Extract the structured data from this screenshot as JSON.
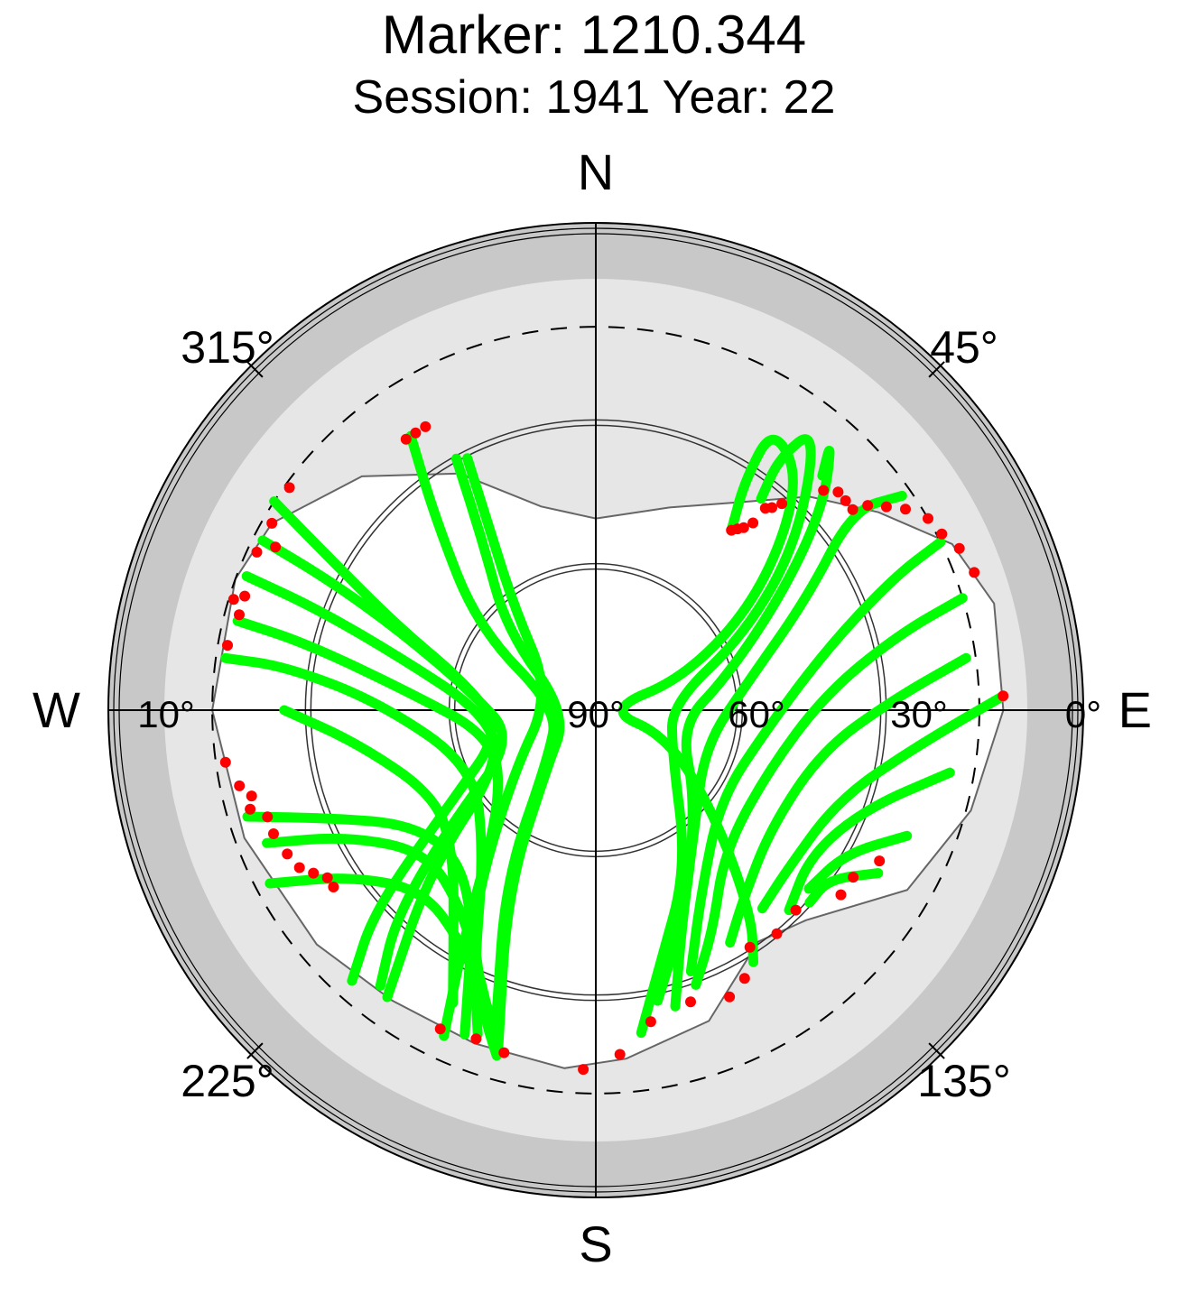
{
  "title": "Marker: 1210.344",
  "subtitle": "Session: 1941 Year: 22",
  "compass": {
    "north": "N",
    "south": "S",
    "east": "E",
    "west": "W"
  },
  "azimuth_labels": {
    "a315": "315°",
    "a45": "45°",
    "a225": "225°",
    "a135": "135°"
  },
  "elevation_labels": {
    "e10": "10°",
    "e90": "90°",
    "e60": "60°",
    "e30": "30°",
    "e0": "0°"
  },
  "colors": {
    "outer_band": "#c8c8c8",
    "mask": "#e6e6e6",
    "good_obs": "#00ff00",
    "flagged_obs": "#ff0000"
  },
  "chart_data": {
    "type": "scatter",
    "projection": "polar-skyplot",
    "radial_axis": "elevation",
    "elevation_range": [
      0,
      90
    ],
    "elevation_ticks": [
      0,
      10,
      30,
      60,
      90
    ],
    "azimuth_ticks": [
      0,
      45,
      90,
      135,
      180,
      225,
      270,
      315
    ],
    "mask_profile": [
      {
        "az": 0,
        "el": 50
      },
      {
        "az": 20,
        "el": 45
      },
      {
        "az": 35,
        "el": 37
      },
      {
        "az": 45,
        "el": 27
      },
      {
        "az": 55,
        "el": 18
      },
      {
        "az": 65,
        "el": 8
      },
      {
        "az": 75,
        "el": 4
      },
      {
        "az": 90,
        "el": 5
      },
      {
        "az": 105,
        "el": 9
      },
      {
        "az": 120,
        "el": 15
      },
      {
        "az": 135,
        "el": 28
      },
      {
        "az": 145,
        "el": 31
      },
      {
        "az": 160,
        "el": 21
      },
      {
        "az": 175,
        "el": 17
      },
      {
        "az": 185,
        "el": 15
      },
      {
        "az": 200,
        "el": 16
      },
      {
        "az": 215,
        "el": 16
      },
      {
        "az": 230,
        "el": 14
      },
      {
        "az": 250,
        "el": 12
      },
      {
        "az": 270,
        "el": 10
      },
      {
        "az": 290,
        "el": 10
      },
      {
        "az": 300,
        "el": 12
      },
      {
        "az": 315,
        "el": 21
      },
      {
        "az": 330,
        "el": 33
      },
      {
        "az": 345,
        "el": 46
      },
      {
        "az": 360,
        "el": 50
      }
    ],
    "series": [
      {
        "tracks": [
          [
            [
              326,
              21
            ],
            [
              320,
              38
            ],
            [
              305,
              60
            ],
            [
              272,
              82
            ],
            [
              225,
              76
            ],
            [
              208,
              50
            ],
            [
              198,
              23
            ]
          ],
          [
            [
              333,
              31
            ],
            [
              330,
              45
            ],
            [
              322,
              62
            ],
            [
              290,
              80
            ],
            [
              232,
              68
            ],
            [
              212,
              42
            ],
            [
              202,
              17
            ]
          ],
          [
            [
              331,
              30
            ],
            [
              326,
              48
            ],
            [
              312,
              65
            ],
            [
              262,
              84
            ],
            [
              220,
              74
            ],
            [
              206,
              48
            ],
            [
              196,
              16
            ]
          ],
          [
            [
              303,
              10
            ],
            [
              300,
              25
            ],
            [
              293,
              45
            ],
            [
              282,
              62
            ],
            [
              258,
              70
            ],
            [
              238,
              55
            ],
            [
              228,
              28
            ],
            [
              222,
              14
            ]
          ],
          [
            [
              297,
              12
            ],
            [
              296,
              28
            ],
            [
              292,
              46
            ],
            [
              278,
              64
            ],
            [
              250,
              72
            ],
            [
              232,
              52
            ],
            [
              224,
              30
            ],
            [
              218,
              17
            ]
          ],
          [
            [
              291,
              12
            ],
            [
              290,
              28
            ],
            [
              285,
              48
            ],
            [
              270,
              66
            ],
            [
              242,
              68
            ],
            [
              226,
              42
            ],
            [
              216,
              16
            ]
          ],
          [
            [
              284,
              13
            ],
            [
              283,
              28
            ],
            [
              276,
              50
            ],
            [
              255,
              68
            ],
            [
              225,
              62
            ],
            [
              210,
              35
            ],
            [
              205,
              15
            ]
          ],
          [
            [
              278,
              12
            ],
            [
              278,
              25
            ],
            [
              272,
              45
            ],
            [
              245,
              62
            ],
            [
              218,
              52
            ],
            [
              205,
              30
            ],
            [
              200,
              18
            ]
          ],
          [
            [
              270,
              25
            ],
            [
              262,
              40
            ],
            [
              242,
              52
            ],
            [
              225,
              48
            ],
            [
              212,
              34
            ],
            [
              206,
              22
            ]
          ],
          [
            [
              253,
              14
            ],
            [
              248,
              30
            ],
            [
              238,
              45
            ],
            [
              222,
              48
            ],
            [
              208,
              36
            ],
            [
              200,
              22
            ],
            [
              196,
              15
            ]
          ],
          [
            [
              248,
              16
            ],
            [
              243,
              32
            ],
            [
              230,
              44
            ],
            [
              214,
              40
            ],
            [
              204,
              30
            ],
            [
              198,
              20
            ]
          ],
          [
            [
              242,
              13
            ],
            [
              236,
              28
            ],
            [
              224,
              38
            ],
            [
              210,
              34
            ],
            [
              200,
              24
            ]
          ],
          [
            [
              37,
              43
            ],
            [
              33,
              33
            ],
            [
              32,
              20
            ],
            [
              42,
              26
            ],
            [
              55,
              48
            ],
            [
              70,
              70
            ],
            [
              88,
              88
            ],
            [
              110,
              74
            ],
            [
              132,
              56
            ],
            [
              143,
              36
            ],
            [
              148,
              28
            ]
          ],
          [
            [
              38,
              34
            ],
            [
              36,
              25
            ],
            [
              38,
              15
            ],
            [
              50,
              35
            ],
            [
              63,
              55
            ],
            [
              85,
              74
            ],
            [
              118,
              72
            ],
            [
              150,
              52
            ],
            [
              166,
              35
            ],
            [
              172,
              22
            ]
          ],
          [
            [
              44,
              22
            ],
            [
              41,
              15
            ],
            [
              48,
              26
            ],
            [
              58,
              44
            ],
            [
              76,
              62
            ],
            [
              100,
              72
            ],
            [
              132,
              62
            ],
            [
              156,
              44
            ],
            [
              168,
              28
            ]
          ],
          [
            [
              55,
              12
            ],
            [
              52,
              22
            ],
            [
              62,
              40
            ],
            [
              80,
              58
            ],
            [
              108,
              66
            ],
            [
              140,
              58
            ],
            [
              158,
              42
            ],
            [
              165,
              26
            ]
          ],
          [
            [
              64,
              10
            ],
            [
              66,
              22
            ],
            [
              75,
              40
            ],
            [
              96,
              54
            ],
            [
              126,
              58
            ],
            [
              150,
              46
            ],
            [
              160,
              32
            ]
          ],
          [
            [
              73,
              10
            ],
            [
              76,
              25
            ],
            [
              86,
              42
            ],
            [
              110,
              52
            ],
            [
              138,
              50
            ],
            [
              152,
              38
            ],
            [
              160,
              29
            ]
          ],
          [
            [
              82,
              12
            ],
            [
              88,
              28
            ],
            [
              100,
              42
            ],
            [
              124,
              46
            ],
            [
              142,
              40
            ],
            [
              150,
              34
            ]
          ],
          [
            [
              88,
              5
            ],
            [
              96,
              22
            ],
            [
              110,
              36
            ],
            [
              130,
              38
            ],
            [
              140,
              36
            ]
          ],
          [
            [
              100,
              15
            ],
            [
              110,
              30
            ],
            [
              124,
              36
            ],
            [
              136,
              32
            ]
          ],
          [
            [
              112,
              20
            ],
            [
              120,
              30
            ],
            [
              130,
              32
            ]
          ],
          [
            [
              120,
              22
            ],
            [
              126,
              30
            ],
            [
              132,
              30
            ]
          ]
        ],
        "name": ""
      },
      {
        "points": [
          [
            325,
            21
          ],
          [
            327,
            21
          ],
          [
            329,
            21
          ],
          [
            306,
            11
          ],
          [
            300,
            12
          ],
          [
            297,
            15
          ],
          [
            295,
            12
          ],
          [
            288,
            13
          ],
          [
            287,
            11
          ],
          [
            285,
            13
          ],
          [
            280,
            12
          ],
          [
            262,
            12
          ],
          [
            258,
            14
          ],
          [
            256,
            16
          ],
          [
            254,
            15
          ],
          [
            252,
            18
          ],
          [
            249,
            18
          ],
          [
            245,
            19
          ],
          [
            242,
            20
          ],
          [
            240,
            22
          ],
          [
            238,
            24
          ],
          [
            236,
            24
          ],
          [
            37,
            43
          ],
          [
            38,
            42
          ],
          [
            39,
            41
          ],
          [
            40,
            39
          ],
          [
            40,
            35
          ],
          [
            41,
            34
          ],
          [
            42,
            32
          ],
          [
            46,
            24
          ],
          [
            48,
            22
          ],
          [
            50,
            22
          ],
          [
            52,
            22
          ],
          [
            53,
            19
          ],
          [
            55,
            16
          ],
          [
            57,
            13
          ],
          [
            60,
            10
          ],
          [
            63,
            9
          ],
          [
            66,
            7
          ],
          [
            70,
            6
          ],
          [
            88,
            5
          ],
          [
            206,
            16
          ],
          [
            200,
            17
          ],
          [
            195,
            16
          ],
          [
            182,
            15
          ],
          [
            176,
            18
          ],
          [
            170,
            24
          ],
          [
            162,
            26
          ],
          [
            155,
            24
          ],
          [
            151,
            26
          ],
          [
            147,
            31
          ],
          [
            141,
            30
          ],
          [
            135,
            31
          ],
          [
            127,
            26
          ],
          [
            123,
            26
          ],
          [
            118,
            23
          ]
        ],
        "name": ""
      }
    ]
  }
}
